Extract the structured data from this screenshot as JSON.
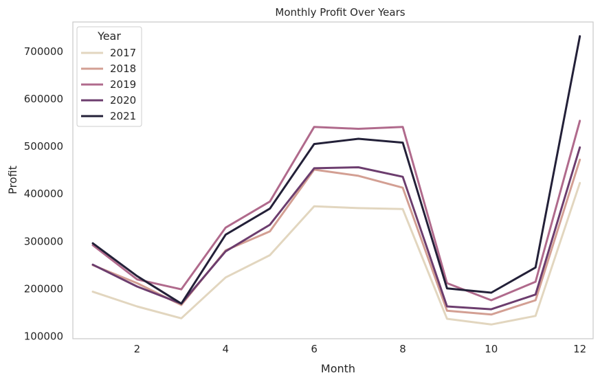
{
  "chart_data": {
    "type": "line",
    "title": "Monthly Profit Over Years",
    "xlabel": "Month",
    "ylabel": "Profit",
    "xlim": [
      0.55,
      12.3
    ],
    "ylim": [
      95000,
      762000
    ],
    "x_ticks": [
      2,
      4,
      6,
      8,
      10,
      12
    ],
    "x_tick_labels": [
      "2",
      "4",
      "6",
      "8",
      "10",
      "12"
    ],
    "y_ticks": [
      100000,
      200000,
      300000,
      400000,
      500000,
      600000,
      700000
    ],
    "y_tick_labels": [
      "100000",
      "200000",
      "300000",
      "400000",
      "500000",
      "600000",
      "700000"
    ],
    "grid": false,
    "legend": {
      "title": "Year",
      "placement": "top-left"
    },
    "x": [
      1,
      2,
      3,
      4,
      5,
      6,
      7,
      8,
      9,
      10,
      11,
      12
    ],
    "series": [
      {
        "name": "2017",
        "color": "#e2d6bf",
        "values": [
          194000,
          163000,
          138000,
          224000,
          271000,
          374000,
          370000,
          368000,
          137000,
          125000,
          143000,
          423000
        ]
      },
      {
        "name": "2018",
        "color": "#d39f93",
        "values": [
          250000,
          212000,
          166000,
          281000,
          321000,
          451000,
          438000,
          413000,
          154000,
          146000,
          176000,
          472000
        ]
      },
      {
        "name": "2019",
        "color": "#b06a8c",
        "values": [
          292000,
          220000,
          199000,
          329000,
          384000,
          541000,
          537000,
          541000,
          212000,
          176000,
          215000,
          554000
        ]
      },
      {
        "name": "2020",
        "color": "#6c3d6e",
        "values": [
          251000,
          205000,
          169000,
          279000,
          335000,
          454000,
          456000,
          436000,
          163000,
          157000,
          188000,
          498000
        ]
      },
      {
        "name": "2021",
        "color": "#232038",
        "values": [
          296000,
          227000,
          169000,
          314000,
          369000,
          505000,
          516000,
          508000,
          201000,
          192000,
          245000,
          732000
        ]
      }
    ]
  }
}
